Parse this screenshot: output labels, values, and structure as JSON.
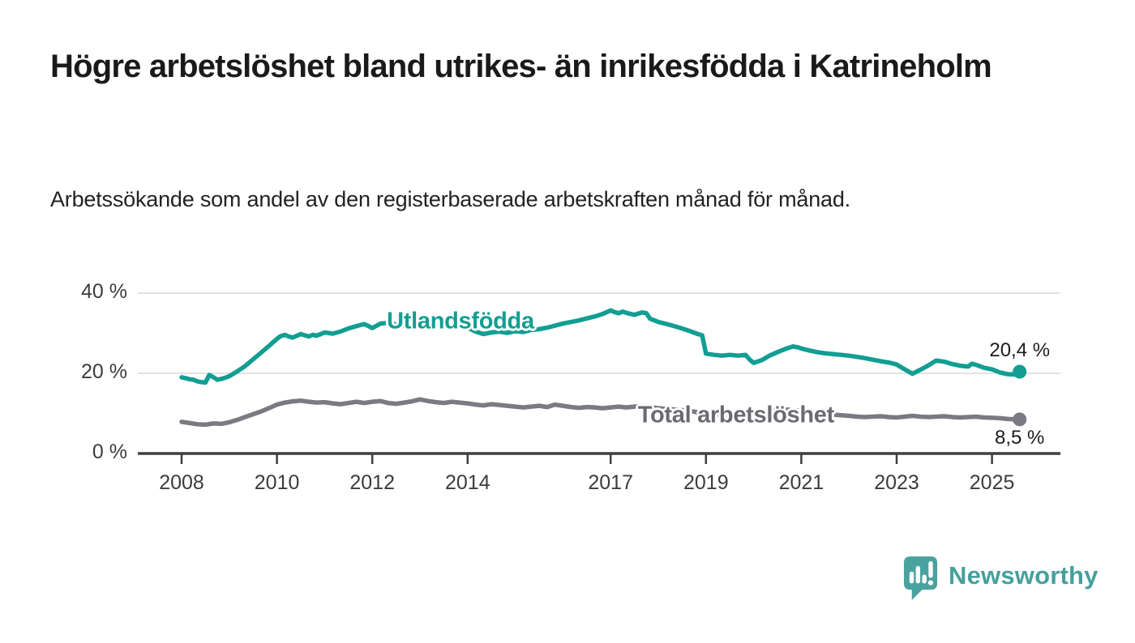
{
  "header": {
    "title": "Högre arbetslöshet bland utrikes- än inrikesfödda i Katrineholm",
    "subtitle": "Arbetssökande som andel av den registerbaserade arbetskraften månad för månad."
  },
  "colors": {
    "gridline": "#d9d9d9",
    "axis": "#3f3f3f",
    "teal": "#129e92",
    "gray_line": "#7b7982",
    "gray_label": "#6b6a72"
  },
  "chart_data": {
    "type": "line",
    "unit": "%",
    "frequency": "monthly",
    "grid": "horizontal-only",
    "x_axis": {
      "ticks": [
        "2008",
        "2010",
        "2012",
        "2014",
        "2017",
        "2019",
        "2021",
        "2023",
        "2025"
      ],
      "tick_years": [
        2008,
        2010,
        2012,
        2014,
        2017,
        2019,
        2021,
        2023,
        2025
      ],
      "range": [
        2007.1,
        2025.9
      ]
    },
    "y_axis": {
      "ticks": [
        "0 %",
        "20 %",
        "40 %"
      ],
      "tick_values": [
        0,
        20,
        40
      ],
      "range": [
        0,
        40
      ]
    },
    "series": [
      {
        "name": "Utlandsfödda",
        "color": "#129e92",
        "label_color": "#129e92",
        "end_label": "20,4 %",
        "end_value": 20.4,
        "end_label_position": "above",
        "label_anchor": [
          2013.85,
          33.0
        ],
        "points": [
          [
            2008.0,
            19.0
          ],
          [
            2008.08,
            18.8
          ],
          [
            2008.17,
            18.5
          ],
          [
            2008.25,
            18.4
          ],
          [
            2008.33,
            18.0
          ],
          [
            2008.42,
            17.8
          ],
          [
            2008.5,
            17.7
          ],
          [
            2008.58,
            19.6
          ],
          [
            2008.67,
            19.0
          ],
          [
            2008.75,
            18.4
          ],
          [
            2008.83,
            18.6
          ],
          [
            2008.92,
            18.9
          ],
          [
            2009.0,
            19.3
          ],
          [
            2009.17,
            20.5
          ],
          [
            2009.33,
            21.8
          ],
          [
            2009.5,
            23.5
          ],
          [
            2009.67,
            25.2
          ],
          [
            2009.83,
            26.8
          ],
          [
            2010.0,
            28.6
          ],
          [
            2010.08,
            29.3
          ],
          [
            2010.17,
            29.6
          ],
          [
            2010.25,
            29.2
          ],
          [
            2010.33,
            28.9
          ],
          [
            2010.42,
            29.4
          ],
          [
            2010.5,
            29.8
          ],
          [
            2010.58,
            29.5
          ],
          [
            2010.67,
            29.2
          ],
          [
            2010.75,
            29.6
          ],
          [
            2010.83,
            29.4
          ],
          [
            2010.92,
            29.8
          ],
          [
            2011.0,
            30.2
          ],
          [
            2011.17,
            29.9
          ],
          [
            2011.33,
            30.4
          ],
          [
            2011.5,
            31.2
          ],
          [
            2011.67,
            31.8
          ],
          [
            2011.83,
            32.3
          ],
          [
            2011.92,
            31.8
          ],
          [
            2012.0,
            31.3
          ],
          [
            2012.17,
            32.4
          ],
          [
            2012.33,
            32.6
          ],
          [
            2012.5,
            32.2
          ],
          [
            2012.67,
            31.9
          ],
          [
            2012.83,
            32.4
          ],
          [
            2013.0,
            33.9
          ],
          [
            2013.08,
            33.4
          ],
          [
            2013.17,
            32.4
          ],
          [
            2013.33,
            32.0
          ],
          [
            2013.5,
            32.3
          ],
          [
            2013.67,
            32.0
          ],
          [
            2013.83,
            31.7
          ],
          [
            2014.0,
            31.4
          ],
          [
            2014.17,
            30.4
          ],
          [
            2014.33,
            29.8
          ],
          [
            2014.5,
            30.2
          ],
          [
            2014.67,
            30.4
          ],
          [
            2014.83,
            30.1
          ],
          [
            2015.0,
            30.5
          ],
          [
            2015.17,
            30.3
          ],
          [
            2015.33,
            30.8
          ],
          [
            2015.5,
            31.0
          ],
          [
            2015.67,
            31.4
          ],
          [
            2015.83,
            31.9
          ],
          [
            2016.0,
            32.4
          ],
          [
            2016.17,
            32.8
          ],
          [
            2016.33,
            33.2
          ],
          [
            2016.5,
            33.7
          ],
          [
            2016.67,
            34.2
          ],
          [
            2016.83,
            34.8
          ],
          [
            2017.0,
            35.7
          ],
          [
            2017.08,
            35.3
          ],
          [
            2017.17,
            35.0
          ],
          [
            2017.25,
            35.4
          ],
          [
            2017.33,
            35.1
          ],
          [
            2017.42,
            34.8
          ],
          [
            2017.5,
            34.6
          ],
          [
            2017.58,
            34.9
          ],
          [
            2017.67,
            35.2
          ],
          [
            2017.75,
            35.0
          ],
          [
            2017.83,
            33.6
          ],
          [
            2017.92,
            33.2
          ],
          [
            2018.0,
            32.8
          ],
          [
            2018.17,
            32.3
          ],
          [
            2018.33,
            31.8
          ],
          [
            2018.5,
            31.2
          ],
          [
            2018.67,
            30.5
          ],
          [
            2018.83,
            29.8
          ],
          [
            2018.92,
            29.5
          ],
          [
            2019.0,
            24.9
          ],
          [
            2019.17,
            24.6
          ],
          [
            2019.33,
            24.4
          ],
          [
            2019.5,
            24.6
          ],
          [
            2019.67,
            24.4
          ],
          [
            2019.83,
            24.6
          ],
          [
            2019.92,
            23.4
          ],
          [
            2020.0,
            22.6
          ],
          [
            2020.17,
            23.3
          ],
          [
            2020.33,
            24.4
          ],
          [
            2020.5,
            25.3
          ],
          [
            2020.67,
            26.1
          ],
          [
            2020.83,
            26.7
          ],
          [
            2020.92,
            26.5
          ],
          [
            2021.0,
            26.2
          ],
          [
            2021.17,
            25.7
          ],
          [
            2021.33,
            25.3
          ],
          [
            2021.5,
            25.0
          ],
          [
            2021.67,
            24.8
          ],
          [
            2021.83,
            24.6
          ],
          [
            2022.0,
            24.4
          ],
          [
            2022.17,
            24.1
          ],
          [
            2022.33,
            23.8
          ],
          [
            2022.5,
            23.4
          ],
          [
            2022.67,
            23.0
          ],
          [
            2022.83,
            22.7
          ],
          [
            2023.0,
            22.2
          ],
          [
            2023.17,
            21.0
          ],
          [
            2023.33,
            19.9
          ],
          [
            2023.5,
            20.9
          ],
          [
            2023.67,
            22.0
          ],
          [
            2023.83,
            23.2
          ],
          [
            2024.0,
            22.9
          ],
          [
            2024.17,
            22.3
          ],
          [
            2024.33,
            21.9
          ],
          [
            2024.5,
            21.7
          ],
          [
            2024.58,
            22.4
          ],
          [
            2024.67,
            22.1
          ],
          [
            2024.83,
            21.4
          ],
          [
            2025.0,
            21.0
          ],
          [
            2025.17,
            20.2
          ],
          [
            2025.33,
            19.8
          ],
          [
            2025.5,
            19.7
          ],
          [
            2025.58,
            20.4
          ]
        ]
      },
      {
        "name": "Total arbetslöshet",
        "color": "#7b7982",
        "label_color": "#6b6a72",
        "end_label": "8,5 %",
        "end_value": 8.5,
        "end_label_position": "below",
        "label_anchor": [
          2019.63,
          9.5
        ],
        "points": [
          [
            2008.0,
            7.9
          ],
          [
            2008.17,
            7.6
          ],
          [
            2008.33,
            7.3
          ],
          [
            2008.5,
            7.2
          ],
          [
            2008.67,
            7.5
          ],
          [
            2008.83,
            7.4
          ],
          [
            2009.0,
            7.8
          ],
          [
            2009.17,
            8.4
          ],
          [
            2009.33,
            9.1
          ],
          [
            2009.5,
            9.8
          ],
          [
            2009.67,
            10.5
          ],
          [
            2009.83,
            11.3
          ],
          [
            2010.0,
            12.2
          ],
          [
            2010.17,
            12.7
          ],
          [
            2010.33,
            13.0
          ],
          [
            2010.5,
            13.2
          ],
          [
            2010.67,
            12.9
          ],
          [
            2010.83,
            12.7
          ],
          [
            2011.0,
            12.8
          ],
          [
            2011.17,
            12.5
          ],
          [
            2011.33,
            12.3
          ],
          [
            2011.5,
            12.6
          ],
          [
            2011.67,
            12.9
          ],
          [
            2011.83,
            12.6
          ],
          [
            2012.0,
            12.9
          ],
          [
            2012.17,
            13.1
          ],
          [
            2012.33,
            12.6
          ],
          [
            2012.5,
            12.4
          ],
          [
            2012.67,
            12.7
          ],
          [
            2012.83,
            13.0
          ],
          [
            2013.0,
            13.5
          ],
          [
            2013.17,
            13.1
          ],
          [
            2013.33,
            12.8
          ],
          [
            2013.5,
            12.6
          ],
          [
            2013.67,
            12.9
          ],
          [
            2013.83,
            12.7
          ],
          [
            2014.0,
            12.5
          ],
          [
            2014.17,
            12.2
          ],
          [
            2014.33,
            12.0
          ],
          [
            2014.5,
            12.3
          ],
          [
            2014.67,
            12.1
          ],
          [
            2014.83,
            11.9
          ],
          [
            2015.0,
            11.7
          ],
          [
            2015.17,
            11.5
          ],
          [
            2015.33,
            11.7
          ],
          [
            2015.5,
            11.9
          ],
          [
            2015.67,
            11.6
          ],
          [
            2015.83,
            12.2
          ],
          [
            2016.0,
            11.9
          ],
          [
            2016.17,
            11.6
          ],
          [
            2016.33,
            11.4
          ],
          [
            2016.5,
            11.6
          ],
          [
            2016.67,
            11.5
          ],
          [
            2016.83,
            11.3
          ],
          [
            2017.0,
            11.5
          ],
          [
            2017.17,
            11.7
          ],
          [
            2017.33,
            11.5
          ],
          [
            2017.5,
            11.7
          ],
          [
            2017.67,
            11.9
          ],
          [
            2017.83,
            11.6
          ],
          [
            2018.0,
            11.3
          ],
          [
            2018.33,
            11.0
          ],
          [
            2018.67,
            10.6
          ],
          [
            2019.0,
            9.9
          ],
          [
            2019.33,
            9.7
          ],
          [
            2019.67,
            9.6
          ],
          [
            2020.0,
            9.8
          ],
          [
            2020.33,
            10.8
          ],
          [
            2020.67,
            11.0
          ],
          [
            2021.0,
            10.6
          ],
          [
            2021.33,
            10.1
          ],
          [
            2021.67,
            9.7
          ],
          [
            2022.0,
            9.4
          ],
          [
            2022.17,
            9.2
          ],
          [
            2022.33,
            9.1
          ],
          [
            2022.5,
            9.2
          ],
          [
            2022.67,
            9.3
          ],
          [
            2022.83,
            9.1
          ],
          [
            2023.0,
            9.0
          ],
          [
            2023.17,
            9.2
          ],
          [
            2023.33,
            9.4
          ],
          [
            2023.5,
            9.2
          ],
          [
            2023.67,
            9.1
          ],
          [
            2023.83,
            9.2
          ],
          [
            2024.0,
            9.3
          ],
          [
            2024.17,
            9.1
          ],
          [
            2024.33,
            9.0
          ],
          [
            2024.5,
            9.1
          ],
          [
            2024.67,
            9.2
          ],
          [
            2024.83,
            9.0
          ],
          [
            2025.0,
            8.9
          ],
          [
            2025.17,
            8.8
          ],
          [
            2025.33,
            8.6
          ],
          [
            2025.5,
            8.5
          ],
          [
            2025.58,
            8.5
          ]
        ]
      }
    ]
  },
  "branding": {
    "logo_text": "Newsworthy",
    "logo_color": "#45a09d",
    "logo_icon": "speech-bubble-bar-chart-icon"
  }
}
